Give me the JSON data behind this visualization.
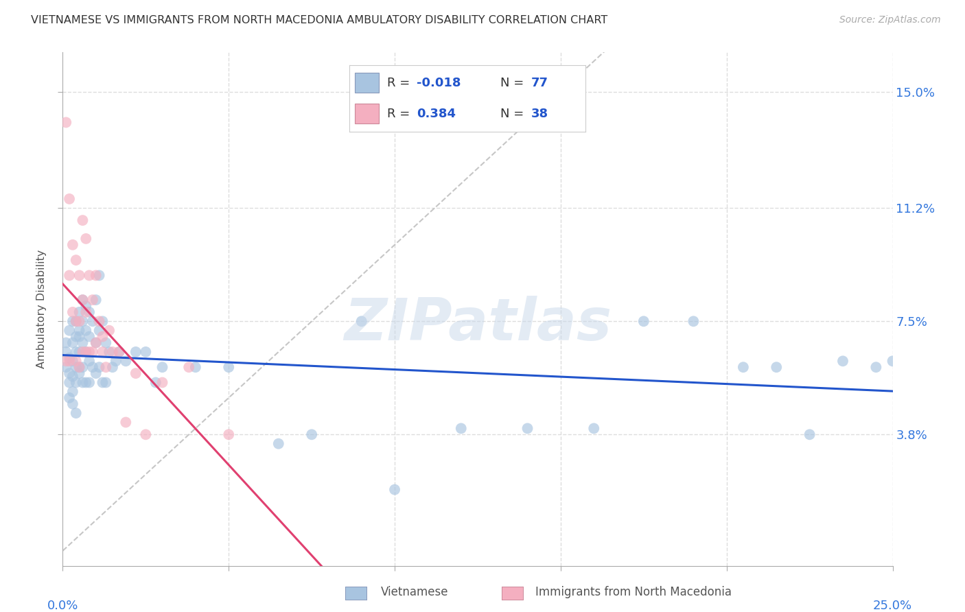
{
  "title": "VIETNAMESE VS IMMIGRANTS FROM NORTH MACEDONIA AMBULATORY DISABILITY CORRELATION CHART",
  "source": "Source: ZipAtlas.com",
  "ylabel": "Ambulatory Disability",
  "ytick_labels": [
    "3.8%",
    "7.5%",
    "11.2%",
    "15.0%"
  ],
  "ytick_values": [
    0.038,
    0.075,
    0.112,
    0.15
  ],
  "xlim": [
    0.0,
    0.25
  ],
  "ylim": [
    -0.005,
    0.163
  ],
  "color_vietnamese": "#a8c4e0",
  "color_macedonia": "#f4afc0",
  "color_line_vietnamese": "#2255cc",
  "color_line_macedonia": "#e04070",
  "color_diagonal": "#c0c0c0",
  "grid_color": "#dddddd",
  "bg_color": "#ffffff",
  "viet_r": "-0.018",
  "viet_n": "77",
  "mac_r": "0.384",
  "mac_n": "38",
  "vietnamese_x": [
    0.001,
    0.001,
    0.001,
    0.002,
    0.002,
    0.002,
    0.002,
    0.002,
    0.003,
    0.003,
    0.003,
    0.003,
    0.003,
    0.003,
    0.004,
    0.004,
    0.004,
    0.004,
    0.004,
    0.004,
    0.005,
    0.005,
    0.005,
    0.005,
    0.005,
    0.005,
    0.006,
    0.006,
    0.006,
    0.006,
    0.006,
    0.007,
    0.007,
    0.007,
    0.007,
    0.008,
    0.008,
    0.008,
    0.008,
    0.009,
    0.009,
    0.01,
    0.01,
    0.01,
    0.011,
    0.011,
    0.011,
    0.012,
    0.012,
    0.013,
    0.013,
    0.014,
    0.015,
    0.016,
    0.017,
    0.019,
    0.022,
    0.025,
    0.028,
    0.03,
    0.04,
    0.05,
    0.065,
    0.075,
    0.09,
    0.1,
    0.12,
    0.14,
    0.16,
    0.175,
    0.19,
    0.205,
    0.215,
    0.225,
    0.235,
    0.245,
    0.25
  ],
  "vietnamese_y": [
    0.065,
    0.06,
    0.068,
    0.072,
    0.063,
    0.058,
    0.05,
    0.055,
    0.068,
    0.062,
    0.057,
    0.075,
    0.052,
    0.048,
    0.07,
    0.065,
    0.06,
    0.075,
    0.055,
    0.045,
    0.078,
    0.07,
    0.065,
    0.058,
    0.072,
    0.06,
    0.082,
    0.075,
    0.068,
    0.06,
    0.055,
    0.08,
    0.072,
    0.065,
    0.055,
    0.078,
    0.07,
    0.062,
    0.055,
    0.075,
    0.06,
    0.082,
    0.068,
    0.058,
    0.09,
    0.072,
    0.06,
    0.075,
    0.055,
    0.068,
    0.055,
    0.065,
    0.06,
    0.062,
    0.065,
    0.062,
    0.065,
    0.065,
    0.055,
    0.06,
    0.06,
    0.06,
    0.035,
    0.038,
    0.075,
    0.02,
    0.04,
    0.04,
    0.04,
    0.075,
    0.075,
    0.06,
    0.06,
    0.038,
    0.062,
    0.06,
    0.062
  ],
  "macedonia_x": [
    0.001,
    0.001,
    0.002,
    0.002,
    0.002,
    0.003,
    0.003,
    0.004,
    0.004,
    0.004,
    0.005,
    0.005,
    0.005,
    0.006,
    0.006,
    0.006,
    0.007,
    0.007,
    0.007,
    0.008,
    0.008,
    0.009,
    0.009,
    0.01,
    0.01,
    0.011,
    0.012,
    0.012,
    0.013,
    0.014,
    0.015,
    0.017,
    0.019,
    0.022,
    0.025,
    0.03,
    0.038,
    0.05
  ],
  "macedonia_y": [
    0.14,
    0.062,
    0.115,
    0.09,
    0.062,
    0.1,
    0.078,
    0.095,
    0.075,
    0.062,
    0.09,
    0.075,
    0.06,
    0.108,
    0.082,
    0.065,
    0.102,
    0.078,
    0.065,
    0.09,
    0.065,
    0.082,
    0.065,
    0.09,
    0.068,
    0.075,
    0.065,
    0.07,
    0.06,
    0.072,
    0.065,
    0.065,
    0.042,
    0.058,
    0.038,
    0.055,
    0.06,
    0.038
  ]
}
